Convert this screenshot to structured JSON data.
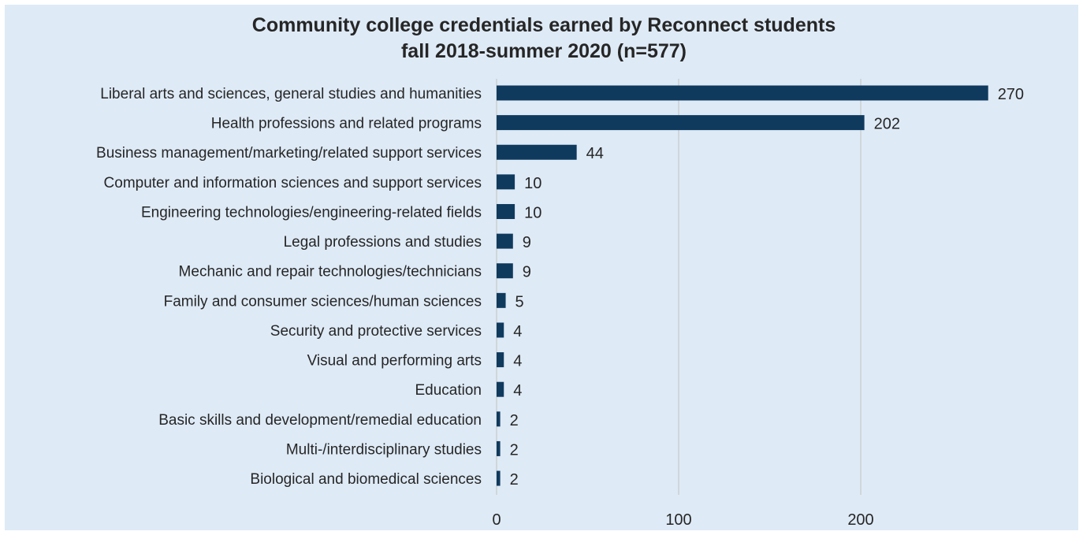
{
  "chart_data": {
    "type": "bar",
    "orientation": "horizontal",
    "title": "Community college credentials earned by Reconnect students",
    "subtitle": "fall 2018-summer 2020 (n=577)",
    "xlabel": "",
    "ylabel": "",
    "categories": [
      "Liberal arts and sciences, general studies and humanities",
      "Health professions and related programs",
      "Business management/marketing/related support services",
      "Computer and information sciences and support services",
      "Engineering technologies/engineering-related fields",
      "Legal professions and studies",
      "Mechanic and repair technologies/technicians",
      "Family and consumer sciences/human sciences",
      "Security and protective services",
      "Visual and performing arts",
      "Education",
      "Basic skills and development/remedial education",
      "Multi-/interdisciplinary studies",
      "Biological and biomedical sciences"
    ],
    "values": [
      270,
      202,
      44,
      10,
      10,
      9,
      9,
      5,
      4,
      4,
      4,
      2,
      2,
      2
    ],
    "xlim": [
      0,
      280
    ],
    "xticks": [
      "0",
      "100",
      "200"
    ],
    "grid": true,
    "legend": "none",
    "colors": {
      "bar": "#0f3a5e",
      "background": "#deeaf6",
      "grid": "#c8c8c8",
      "text": "#262626"
    }
  }
}
